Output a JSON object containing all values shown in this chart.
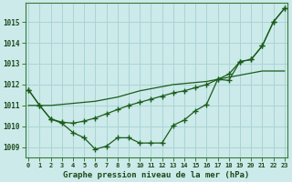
{
  "title": "Graphe pression niveau de la mer (hPa)",
  "bg_color": "#cceaea",
  "grid_color": "#aad4d4",
  "line_color": "#1a5c1a",
  "x_labels": [
    "0",
    "1",
    "2",
    "3",
    "4",
    "5",
    "6",
    "7",
    "8",
    "9",
    "10",
    "11",
    "12",
    "13",
    "14",
    "15",
    "16",
    "17",
    "18",
    "19",
    "20",
    "21",
    "22",
    "23"
  ],
  "ylim": [
    1008.5,
    1015.9
  ],
  "yticks": [
    1009,
    1010,
    1011,
    1012,
    1013,
    1014,
    1015
  ],
  "series": [
    [
      1011.75,
      1011.0,
      1010.35,
      1010.15,
      1009.7,
      1009.45,
      1008.9,
      1009.05,
      1009.45,
      1009.45,
      1009.2,
      1009.2,
      1009.2,
      1010.05,
      1010.3,
      1010.75,
      1011.05,
      1012.25,
      1012.2,
      1013.1,
      1013.2,
      1013.85,
      1015.0,
      1015.65
    ],
    [
      1011.0,
      1011.0,
      1011.0,
      1011.05,
      1011.1,
      1011.15,
      1011.2,
      1011.3,
      1011.4,
      1011.55,
      1011.7,
      1011.8,
      1011.9,
      1012.0,
      1012.05,
      1012.1,
      1012.15,
      1012.25,
      1012.35,
      1012.45,
      1012.55,
      1012.65,
      1012.65,
      1012.65
    ],
    [
      1011.75,
      1011.0,
      1010.35,
      1010.2,
      1010.15,
      1010.25,
      1010.4,
      1010.6,
      1010.8,
      1011.0,
      1011.15,
      1011.3,
      1011.45,
      1011.6,
      1011.7,
      1011.85,
      1012.0,
      1012.25,
      1012.5,
      1013.1,
      1013.2,
      1013.85,
      1015.0,
      1015.65
    ]
  ]
}
